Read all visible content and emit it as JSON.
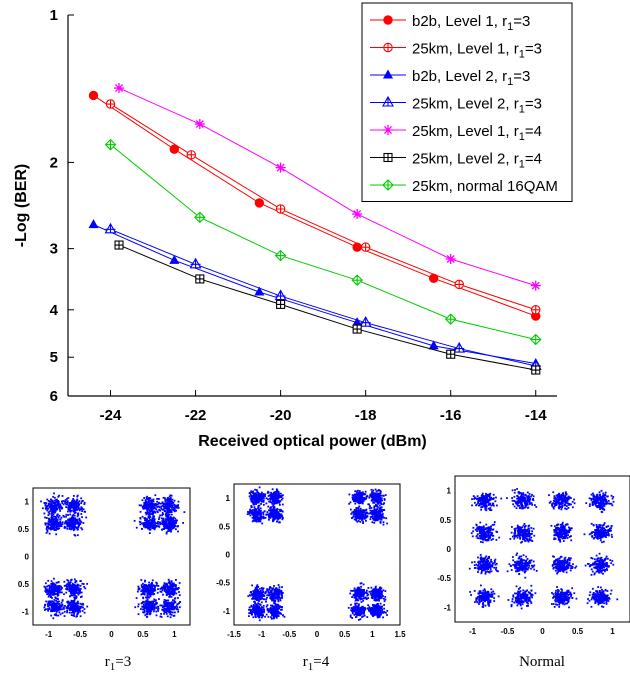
{
  "chart_data": [
    {
      "type": "line",
      "xlabel": "Received optical power (dBm)",
      "ylabel": "-Log (BER)",
      "xlim": [
        -25,
        -13.5
      ],
      "ylim": [
        1,
        6
      ],
      "y_scale": "log",
      "xticks": [
        -24,
        -22,
        -20,
        -18,
        -16,
        -14
      ],
      "yticks": [
        1,
        2,
        3,
        4,
        5,
        6
      ],
      "grid": false,
      "legend_position": "top-right",
      "series": [
        {
          "name": "b2b, Level 1, r",
          "name_sub": "1",
          "name_suffix": "=3",
          "color": "#ff0000",
          "marker": "filled-circle",
          "x": [
            -24.4,
            -22.5,
            -20.5,
            -18.2,
            -16.4,
            -14.0
          ],
          "y": [
            1.46,
            1.88,
            2.42,
            2.98,
            3.45,
            4.12
          ]
        },
        {
          "name": "25km, Level 1, r",
          "name_sub": "1",
          "name_suffix": "=3",
          "color": "#ff0000",
          "marker": "circle-plus",
          "x": [
            -24.0,
            -22.1,
            -20.0,
            -18.0,
            -15.8,
            -14.0
          ],
          "y": [
            1.52,
            1.93,
            2.49,
            2.98,
            3.55,
            4.0
          ]
        },
        {
          "name": "b2b, Level 2, r",
          "name_sub": "1",
          "name_suffix": "=3",
          "color": "#0000ff",
          "marker": "filled-triangle",
          "x": [
            -24.4,
            -22.5,
            -20.5,
            -18.2,
            -16.4,
            -14.0
          ],
          "y": [
            2.68,
            3.17,
            3.68,
            4.25,
            4.74,
            5.15
          ]
        },
        {
          "name": "25km, Level 2, r",
          "name_sub": "1",
          "name_suffix": "=3",
          "color": "#0000ff",
          "marker": "triangle-plus",
          "x": [
            -24.0,
            -22.0,
            -20.0,
            -18.0,
            -15.8,
            -14.0
          ],
          "y": [
            2.74,
            3.23,
            3.75,
            4.25,
            4.8,
            5.21
          ]
        },
        {
          "name": "25km, Level 1, r",
          "name_sub": "1",
          "name_suffix": "=4",
          "color": "#ff00ff",
          "marker": "star",
          "x": [
            -23.8,
            -21.9,
            -20.0,
            -18.2,
            -16.0,
            -14.0
          ],
          "y": [
            1.41,
            1.67,
            2.05,
            2.55,
            3.15,
            3.57
          ]
        },
        {
          "name": "25km, Level 2, r",
          "name_sub": "1",
          "name_suffix": "=4",
          "color": "#000000",
          "marker": "square-plus",
          "x": [
            -23.8,
            -21.9,
            -20.0,
            -18.2,
            -16.0,
            -14.0
          ],
          "y": [
            2.95,
            3.46,
            3.9,
            4.38,
            4.93,
            5.31
          ]
        },
        {
          "name": "25km, normal 16QAM",
          "color": "#00cc00",
          "marker": "diamond-plus",
          "x": [
            -24.0,
            -21.9,
            -20.0,
            -18.2,
            -16.0,
            -14.0
          ],
          "y": [
            1.84,
            2.59,
            3.1,
            3.48,
            4.18,
            4.6
          ]
        }
      ]
    },
    {
      "type": "scatter",
      "caption": "r",
      "caption_sub": "1",
      "caption_suffix": "=3",
      "color": "#0000ff",
      "xlim": [
        -1.25,
        1.25
      ],
      "ylim": [
        -1.25,
        1.25
      ],
      "xticks": [
        "-1",
        "-0.5",
        "0",
        "0.5",
        "1"
      ],
      "yticks": [
        "1",
        "0.5",
        "0",
        "0.5",
        "-1"
      ],
      "cluster_spread": 0.07,
      "clusters_x": [
        -0.92,
        -0.6,
        0.6,
        0.92
      ],
      "clusters_y": [
        -0.92,
        -0.6,
        0.6,
        0.92
      ]
    },
    {
      "type": "scatter",
      "caption": "r",
      "caption_sub": "1",
      "caption_suffix": "=4",
      "color": "#0000ff",
      "xlim": [
        -1.5,
        1.5
      ],
      "ylim": [
        -1.35,
        1.35
      ],
      "xticks": [
        "-1.5",
        "-1",
        "-0.5",
        "0",
        "0.5",
        "1",
        "1.5"
      ],
      "yticks": [
        "1",
        "0.5",
        "0",
        "-0.5",
        "-1"
      ],
      "cluster_spread": 0.065,
      "clusters_x": [
        -1.08,
        -0.76,
        0.76,
        1.08
      ],
      "clusters_y": [
        -1.08,
        -0.76,
        0.76,
        1.08
      ]
    },
    {
      "type": "scatter",
      "caption": "Normal",
      "color": "#0000ff",
      "xlim": [
        -1,
        1
      ],
      "ylim": [
        -1,
        1
      ],
      "xticks": [
        "-1",
        "-0.5",
        "0",
        "0.5",
        "1"
      ],
      "yticks": [
        "1",
        "0.5",
        "0",
        "-0.5",
        "-1"
      ],
      "cluster_spread": 0.055,
      "clusters_x": [
        -0.66,
        -0.22,
        0.22,
        0.66
      ],
      "clusters_y": [
        -0.66,
        -0.22,
        0.22,
        0.66
      ]
    }
  ]
}
